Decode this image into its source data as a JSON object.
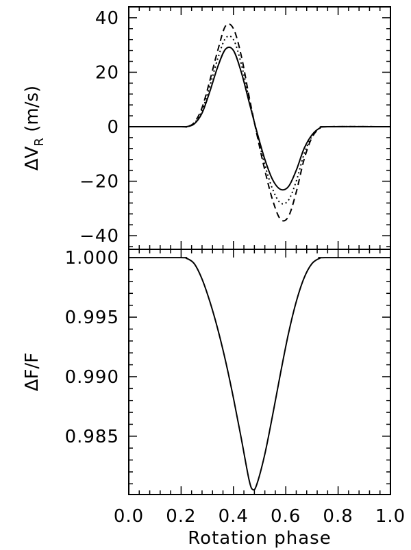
{
  "chart_data": [
    {
      "type": "line",
      "title": "",
      "xlabel": "",
      "ylabel": "ΔV",
      "ylabel_sub": "R",
      "ylabel_units": " (m/s)",
      "xlim": [
        0.0,
        1.0
      ],
      "ylim": [
        -45,
        44
      ],
      "y_ticks": [
        {
          "value": -40,
          "label": "−40"
        },
        {
          "value": -20,
          "label": "−20"
        },
        {
          "value": 0,
          "label": "0"
        },
        {
          "value": 20,
          "label": "20"
        },
        {
          "value": 40,
          "label": "40"
        }
      ],
      "series": [
        {
          "style": "solid",
          "color": "#000000",
          "x": [
            0.0,
            0.2,
            0.22,
            0.25,
            0.28,
            0.31,
            0.34,
            0.37,
            0.4,
            0.43,
            0.46,
            0.49,
            0.52,
            0.55,
            0.58,
            0.61,
            0.64,
            0.67,
            0.7,
            0.73,
            0.76,
            1.0
          ],
          "y": [
            0,
            0,
            0,
            1,
            5,
            13,
            22,
            28.5,
            28,
            20,
            9,
            -2,
            -12,
            -19.5,
            -23,
            -22,
            -16,
            -8,
            -3,
            -0.5,
            0,
            0
          ]
        },
        {
          "style": "dotted",
          "color": "#000000",
          "x": [
            0.0,
            0.2,
            0.22,
            0.25,
            0.28,
            0.31,
            0.34,
            0.37,
            0.4,
            0.43,
            0.46,
            0.49,
            0.52,
            0.55,
            0.58,
            0.61,
            0.64,
            0.67,
            0.7,
            0.73,
            0.76,
            1.0
          ],
          "y": [
            0,
            0,
            0,
            1.2,
            6,
            15,
            25,
            32.5,
            32,
            23,
            10,
            -2.5,
            -14,
            -23,
            -28,
            -27,
            -20,
            -10,
            -3.5,
            -0.5,
            0,
            0
          ]
        },
        {
          "style": "dashed",
          "color": "#000000",
          "x": [
            0.0,
            0.2,
            0.22,
            0.25,
            0.28,
            0.31,
            0.34,
            0.37,
            0.4,
            0.43,
            0.46,
            0.49,
            0.52,
            0.55,
            0.58,
            0.61,
            0.64,
            0.67,
            0.7,
            0.73,
            0.76,
            1.0
          ],
          "y": [
            0,
            0,
            0,
            1.5,
            7,
            17,
            28,
            37,
            36,
            26,
            11,
            -3,
            -16,
            -27,
            -34,
            -33,
            -24,
            -12,
            -4,
            -0.6,
            0,
            0
          ]
        }
      ]
    },
    {
      "type": "line",
      "title": "",
      "xlabel": "Rotation phase",
      "ylabel": "ΔF/F",
      "xlim": [
        0.0,
        1.0
      ],
      "ylim": [
        0.9801,
        1.0007
      ],
      "x_ticks": [
        "0.0",
        "0.2",
        "0.4",
        "0.6",
        "0.8",
        "1.0"
      ],
      "y_ticks": [
        {
          "value": 0.985,
          "label": "0.985"
        },
        {
          "value": 0.99,
          "label": "0.990"
        },
        {
          "value": 0.995,
          "label": "0.995"
        },
        {
          "value": 1.0,
          "label": "1.000"
        }
      ],
      "series": [
        {
          "style": "solid",
          "color": "#000000",
          "x": [
            0.0,
            0.2,
            0.22,
            0.25,
            0.28,
            0.31,
            0.34,
            0.37,
            0.4,
            0.43,
            0.46,
            0.475,
            0.49,
            0.52,
            0.55,
            0.58,
            0.61,
            0.64,
            0.67,
            0.7,
            0.73,
            0.75,
            1.0
          ],
          "y": [
            1.0,
            1.0,
            0.99995,
            0.9995,
            0.9982,
            0.9963,
            0.994,
            0.9913,
            0.9882,
            0.9848,
            0.9813,
            0.9805,
            0.981,
            0.9835,
            0.9868,
            0.9903,
            0.9936,
            0.9963,
            0.9983,
            0.9995,
            0.99995,
            1.0,
            1.0
          ]
        }
      ]
    }
  ]
}
